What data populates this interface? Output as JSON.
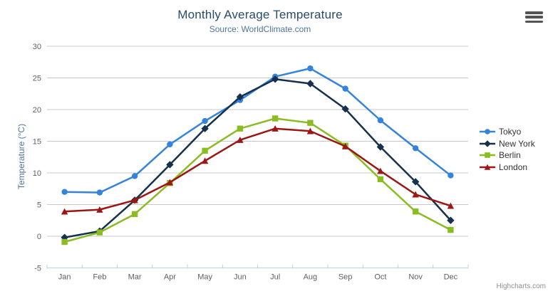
{
  "chart": {
    "title": "Monthly Average Temperature",
    "subtitle": "Source: WorldClimate.com",
    "credit": "Highcharts.com"
  },
  "chart_data": {
    "type": "line",
    "title": "Monthly Average Temperature",
    "subtitle": "Source: WorldClimate.com",
    "xlabel": "",
    "ylabel": "Temperature (°C)",
    "categories": [
      "Jan",
      "Feb",
      "Mar",
      "Apr",
      "May",
      "Jun",
      "Jul",
      "Aug",
      "Sep",
      "Oct",
      "Nov",
      "Dec"
    ],
    "ylim": [
      -5,
      30
    ],
    "y_ticks": [
      -5,
      0,
      5,
      10,
      15,
      20,
      25,
      30
    ],
    "grid": true,
    "legend_position": "right",
    "grid_color": "#c8c8c8",
    "axis_line_color": "#c0d0e0",
    "series": [
      {
        "name": "Tokyo",
        "marker": "circle",
        "color": "#3583dc",
        "values": [
          7.0,
          6.9,
          9.5,
          14.5,
          18.2,
          21.5,
          25.2,
          26.5,
          23.3,
          18.3,
          13.9,
          9.6
        ]
      },
      {
        "name": "New York",
        "marker": "diamond",
        "color": "#16314d",
        "values": [
          -0.2,
          0.8,
          5.7,
          11.3,
          17.0,
          22.0,
          24.8,
          24.1,
          20.1,
          14.1,
          8.6,
          2.5
        ]
      },
      {
        "name": "Berlin",
        "marker": "square",
        "color": "#8bbc21",
        "values": [
          -0.9,
          0.6,
          3.5,
          8.4,
          13.5,
          17.0,
          18.6,
          17.9,
          14.3,
          9.0,
          3.9,
          1.0
        ]
      },
      {
        "name": "London",
        "marker": "triangle",
        "color": "#9c1616",
        "values": [
          3.9,
          4.2,
          5.7,
          8.5,
          11.9,
          15.2,
          17.0,
          16.6,
          14.2,
          10.3,
          6.6,
          4.8
        ]
      }
    ]
  }
}
